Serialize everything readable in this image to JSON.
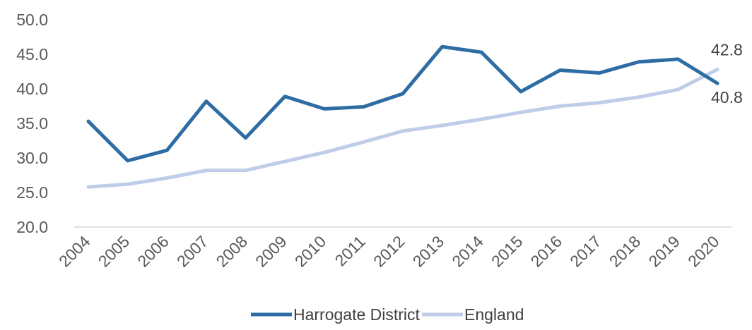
{
  "chart_data": {
    "type": "line",
    "title": "",
    "xlabel": "",
    "ylabel": "",
    "categories": [
      "2004",
      "2005",
      "2006",
      "2007",
      "2008",
      "2009",
      "2010",
      "2011",
      "2012",
      "2013",
      "2014",
      "2015",
      "2016",
      "2017",
      "2018",
      "2019",
      "2020"
    ],
    "ylim": [
      20,
      50
    ],
    "y_ticks": [
      "20.0",
      "25.0",
      "30.0",
      "35.0",
      "40.0",
      "45.0",
      "50.0"
    ],
    "grid": false,
    "legend_position": "bottom",
    "series": [
      {
        "name": "Harrogate District",
        "color": "#2E6CA4",
        "values": [
          35.3,
          29.6,
          31.1,
          38.2,
          32.9,
          38.9,
          37.1,
          37.4,
          39.3,
          46.1,
          45.3,
          39.6,
          42.7,
          42.3,
          43.9,
          44.3,
          40.8
        ],
        "end_label": "40.8"
      },
      {
        "name": "England",
        "color": "#BFCDE8",
        "values": [
          25.8,
          26.2,
          27.1,
          28.2,
          28.2,
          29.5,
          30.8,
          32.3,
          33.9,
          34.7,
          35.6,
          36.6,
          37.5,
          38.0,
          38.8,
          39.9,
          42.8
        ],
        "end_label": "42.8"
      }
    ]
  }
}
